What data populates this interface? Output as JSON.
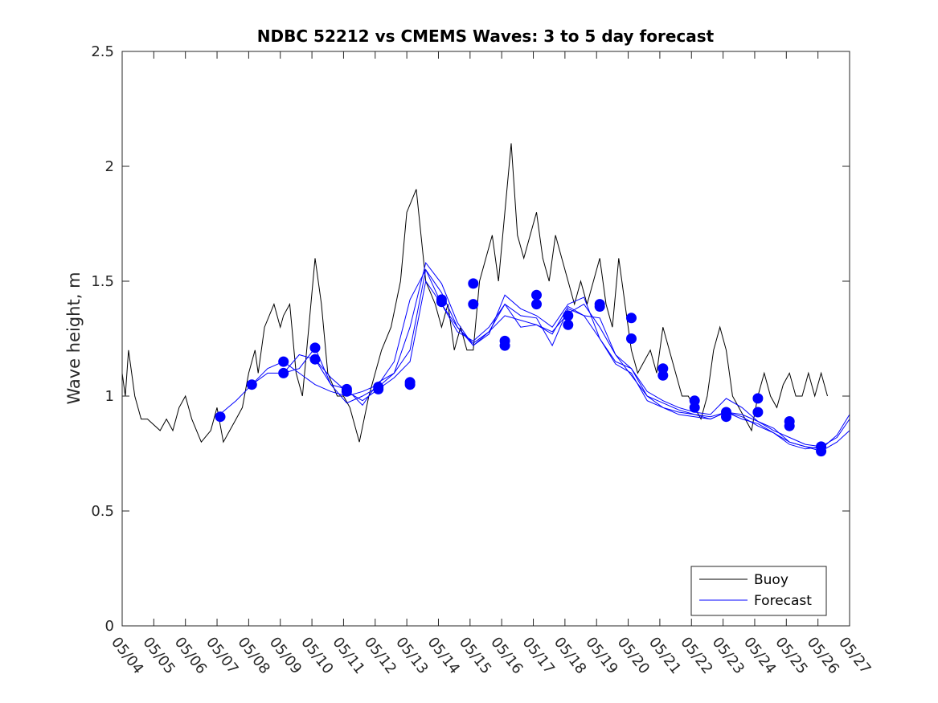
{
  "chart_data": {
    "type": "line",
    "title": "NDBC 52212 vs CMEMS Waves: 3 to 5 day forecast",
    "xlabel": "",
    "ylabel": "Wave height, m",
    "ylim": [
      0,
      2.5
    ],
    "y_ticks": [
      "0",
      "0.5",
      "1",
      "1.5",
      "2",
      "2.5"
    ],
    "x_tick_labels": [
      "05/04",
      "05/05",
      "05/06",
      "05/07",
      "05/08",
      "05/09",
      "05/10",
      "05/11",
      "05/12",
      "05/13",
      "05/14",
      "05/15",
      "05/16",
      "05/17",
      "05/18",
      "05/19",
      "05/20",
      "05/21",
      "05/22",
      "05/23",
      "05/24",
      "05/25",
      "05/26",
      "05/27"
    ],
    "x_unit": "day",
    "xlim": [
      0,
      23
    ],
    "grid": false,
    "legend_position": "bottom-right",
    "legend": [
      "Buoy",
      "Forecast"
    ],
    "colors": {
      "buoy": "#000000",
      "forecast": "#0000ff",
      "axis": "#262626"
    },
    "buoy": {
      "x": [
        0,
        0.1,
        0.2,
        0.4,
        0.6,
        0.8,
        1.2,
        1.4,
        1.6,
        1.8,
        2.0,
        2.2,
        2.5,
        2.8,
        3.0,
        3.2,
        3.4,
        3.6,
        3.8,
        4.0,
        4.2,
        4.3,
        4.5,
        4.8,
        5.0,
        5.1,
        5.3,
        5.5,
        5.7,
        5.9,
        6.1,
        6.3,
        6.5,
        6.8,
        7.0,
        7.2,
        7.5,
        7.8,
        8.0,
        8.2,
        8.5,
        8.8,
        9.0,
        9.3,
        9.6,
        9.9,
        10.1,
        10.3,
        10.5,
        10.7,
        10.9,
        11.1,
        11.3,
        11.5,
        11.7,
        11.9,
        12.1,
        12.3,
        12.5,
        12.7,
        12.9,
        13.1,
        13.3,
        13.5,
        13.7,
        13.9,
        14.1,
        14.3,
        14.5,
        14.7,
        14.9,
        15.1,
        15.3,
        15.5,
        15.7,
        15.9,
        16.1,
        16.3,
        16.5,
        16.7,
        16.9,
        17.1,
        17.3,
        17.5,
        17.7,
        17.9,
        18.1,
        18.3,
        18.5,
        18.7,
        18.9,
        19.1,
        19.3,
        19.5,
        19.7,
        19.9,
        20.1,
        20.3,
        20.5,
        20.7,
        20.9,
        21.1,
        21.3,
        21.5,
        21.7,
        21.9,
        22.1,
        22.3
      ],
      "y": [
        1.1,
        1.0,
        1.2,
        1.0,
        0.9,
        0.9,
        0.85,
        0.9,
        0.85,
        0.95,
        1.0,
        0.9,
        0.8,
        0.85,
        0.95,
        0.8,
        0.85,
        0.9,
        0.95,
        1.1,
        1.2,
        1.1,
        1.3,
        1.4,
        1.3,
        1.35,
        1.4,
        1.1,
        1.0,
        1.3,
        1.6,
        1.4,
        1.1,
        1.0,
        1.0,
        0.95,
        0.8,
        1.0,
        1.1,
        1.2,
        1.3,
        1.5,
        1.8,
        1.9,
        1.5,
        1.4,
        1.3,
        1.4,
        1.2,
        1.3,
        1.2,
        1.2,
        1.5,
        1.6,
        1.7,
        1.5,
        1.8,
        2.1,
        1.7,
        1.6,
        1.7,
        1.8,
        1.6,
        1.5,
        1.7,
        1.6,
        1.5,
        1.4,
        1.5,
        1.4,
        1.5,
        1.6,
        1.4,
        1.3,
        1.6,
        1.4,
        1.2,
        1.1,
        1.15,
        1.2,
        1.1,
        1.3,
        1.2,
        1.1,
        1.0,
        1.0,
        0.95,
        0.9,
        1.0,
        1.2,
        1.3,
        1.2,
        1.0,
        0.95,
        0.9,
        0.85,
        1.0,
        1.1,
        1.0,
        0.95,
        1.05,
        1.1,
        1.0,
        1.0,
        1.1,
        1.0,
        1.1,
        1.0
      ]
    },
    "forecast_series": [
      {
        "x": [
          3.0,
          3.6,
          4.1,
          4.6,
          5.1,
          5.6,
          6.1,
          6.6,
          7.1,
          7.6,
          8.1,
          8.6,
          9.1,
          9.6,
          10.1,
          10.6,
          11.1,
          11.6,
          12.1,
          12.6,
          13.1,
          13.6,
          14.1,
          14.6,
          15.1,
          15.6,
          16.1,
          16.6,
          17.1,
          17.6,
          18.1,
          18.6,
          19.1,
          19.6,
          20.1,
          20.6,
          21.1,
          21.6,
          22.1,
          22.6,
          23.0
        ],
        "y": [
          0.91,
          0.98,
          1.05,
          1.12,
          1.15,
          1.1,
          1.05,
          1.02,
          1.0,
          1.02,
          1.05,
          1.15,
          1.42,
          1.55,
          1.4,
          1.3,
          1.23,
          1.28,
          1.35,
          1.33,
          1.31,
          1.28,
          1.36,
          1.4,
          1.3,
          1.18,
          1.09,
          1.0,
          0.95,
          0.93,
          0.92,
          0.91,
          0.93,
          0.92,
          0.89,
          0.86,
          0.8,
          0.78,
          0.76,
          0.8,
          0.85
        ]
      },
      {
        "x": [
          4.1,
          4.6,
          5.1,
          5.6,
          6.1,
          6.6,
          7.1,
          7.6,
          8.1,
          8.6,
          9.1,
          9.6,
          10.1,
          10.6,
          11.1,
          11.6,
          12.1,
          12.6,
          13.1,
          13.6,
          14.1,
          14.6,
          15.1,
          15.6,
          16.1,
          16.6,
          17.1,
          17.6,
          18.1,
          18.6,
          19.1,
          19.6,
          20.1,
          20.6,
          21.1,
          21.6,
          22.1,
          22.6,
          23.0
        ],
        "y": [
          1.05,
          1.1,
          1.1,
          1.12,
          1.21,
          1.05,
          0.97,
          1.0,
          1.04,
          1.1,
          1.3,
          1.58,
          1.49,
          1.32,
          1.22,
          1.27,
          1.44,
          1.38,
          1.35,
          1.3,
          1.4,
          1.43,
          1.25,
          1.15,
          1.12,
          1.02,
          0.98,
          0.95,
          0.93,
          0.92,
          0.99,
          0.95,
          0.89,
          0.85,
          0.82,
          0.79,
          0.78,
          0.82,
          0.9
        ]
      },
      {
        "x": [
          5.1,
          5.6,
          6.1,
          6.6,
          7.1,
          7.6,
          8.1,
          8.6,
          9.1,
          9.6,
          10.1,
          10.6,
          11.1,
          11.6,
          12.1,
          12.6,
          13.1,
          13.6,
          14.1,
          14.6,
          15.1,
          15.6,
          16.1,
          16.6,
          17.1,
          17.6,
          18.1,
          18.6,
          19.1,
          19.6,
          20.1,
          20.6,
          21.1,
          21.6,
          22.1,
          22.6,
          23.0
        ],
        "y": [
          1.1,
          1.18,
          1.16,
          1.08,
          1.02,
          0.98,
          1.03,
          1.08,
          1.15,
          1.5,
          1.4,
          1.28,
          1.24,
          1.3,
          1.4,
          1.35,
          1.34,
          1.22,
          1.38,
          1.35,
          1.34,
          1.18,
          1.12,
          1.0,
          0.97,
          0.94,
          0.92,
          0.9,
          0.93,
          0.9,
          0.88,
          0.84,
          0.8,
          0.78,
          0.77,
          0.83,
          0.92
        ]
      },
      {
        "x": [
          6.1,
          6.6,
          7.1,
          7.6,
          8.1,
          8.6,
          9.1,
          9.6,
          10.1,
          10.6,
          11.1,
          11.6,
          12.1,
          12.6,
          13.1,
          13.6,
          14.1,
          14.6,
          15.1,
          15.6,
          16.1,
          16.6,
          17.1,
          17.6,
          18.1,
          18.6,
          19.1,
          19.6,
          20.1,
          20.6,
          21.1,
          21.6,
          22.1
        ],
        "y": [
          1.16,
          1.05,
          1.03,
          0.96,
          1.06,
          1.1,
          1.2,
          1.55,
          1.45,
          1.3,
          1.22,
          1.28,
          1.4,
          1.3,
          1.31,
          1.27,
          1.39,
          1.35,
          1.25,
          1.14,
          1.1,
          0.98,
          0.95,
          0.92,
          0.91,
          0.9,
          0.93,
          0.91,
          0.87,
          0.84,
          0.79,
          0.77,
          0.78
        ]
      }
    ],
    "forecast_markers": {
      "x": [
        3.1,
        4.1,
        5.1,
        5.1,
        6.1,
        6.1,
        7.1,
        7.1,
        8.1,
        8.1,
        9.1,
        9.1,
        10.1,
        10.1,
        11.1,
        11.1,
        12.1,
        12.1,
        13.1,
        13.1,
        14.1,
        14.1,
        15.1,
        15.1,
        16.1,
        16.1,
        17.1,
        17.1,
        18.1,
        18.1,
        19.1,
        19.1,
        20.1,
        20.1,
        21.1,
        21.1,
        22.1,
        22.1
      ],
      "y": [
        0.91,
        1.05,
        1.15,
        1.1,
        1.21,
        1.16,
        1.03,
        1.02,
        1.04,
        1.03,
        1.06,
        1.05,
        1.42,
        1.41,
        1.49,
        1.4,
        1.24,
        1.22,
        1.44,
        1.4,
        1.35,
        1.31,
        1.4,
        1.39,
        1.34,
        1.25,
        1.12,
        1.09,
        0.98,
        0.95,
        0.93,
        0.91,
        0.99,
        0.93,
        0.89,
        0.87,
        0.78,
        0.76
      ]
    }
  }
}
